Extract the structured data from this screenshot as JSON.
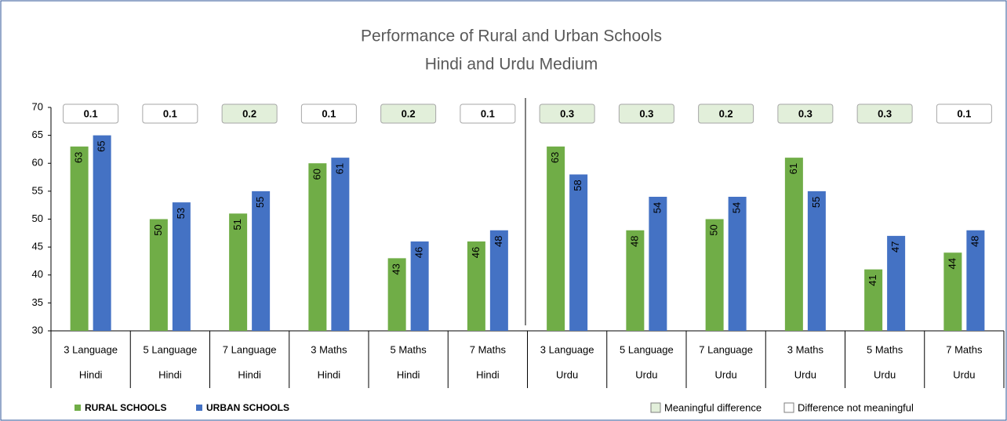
{
  "chart_data": {
    "type": "bar",
    "title": "Performance of Rural and Urban Schools",
    "subtitle": "Hindi and Urdu Medium",
    "categories": [
      "3 Language",
      "5 Language",
      "7 Language",
      "3 Maths",
      "5 Maths",
      "7 Maths",
      "3 Language",
      "5 Language",
      "7 Language",
      "3 Maths",
      "5 Maths",
      "7 Maths"
    ],
    "category_groups": [
      "Hindi",
      "Hindi",
      "Hindi",
      "Hindi",
      "Hindi",
      "Hindi",
      "Urdu",
      "Urdu",
      "Urdu",
      "Urdu",
      "Urdu",
      "Urdu"
    ],
    "series": [
      {
        "name": "RURAL SCHOOLS",
        "color": "#70ad47",
        "values": [
          63,
          50,
          51,
          60,
          43,
          46,
          63,
          48,
          50,
          61,
          41,
          44
        ]
      },
      {
        "name": "URBAN SCHOOLS",
        "color": "#4472c4",
        "values": [
          65,
          53,
          55,
          61,
          46,
          48,
          58,
          54,
          54,
          55,
          47,
          48
        ]
      }
    ],
    "effect_sizes": [
      {
        "value": 0.1,
        "meaningful": false
      },
      {
        "value": 0.1,
        "meaningful": false
      },
      {
        "value": 0.2,
        "meaningful": true
      },
      {
        "value": 0.1,
        "meaningful": false
      },
      {
        "value": 0.2,
        "meaningful": true
      },
      {
        "value": 0.1,
        "meaningful": false
      },
      {
        "value": 0.3,
        "meaningful": true
      },
      {
        "value": 0.3,
        "meaningful": true
      },
      {
        "value": 0.2,
        "meaningful": true
      },
      {
        "value": 0.3,
        "meaningful": true
      },
      {
        "value": 0.3,
        "meaningful": true
      },
      {
        "value": 0.1,
        "meaningful": false
      }
    ],
    "effect_legend": [
      {
        "label": "Meaningful difference",
        "meaningful": true
      },
      {
        "label": "Difference not meaningful",
        "meaningful": false
      }
    ],
    "ylim": [
      30,
      70
    ],
    "yticks": [
      30,
      35,
      40,
      45,
      50,
      55,
      60,
      65,
      70
    ],
    "grid": false,
    "legend": "bottom-left"
  }
}
